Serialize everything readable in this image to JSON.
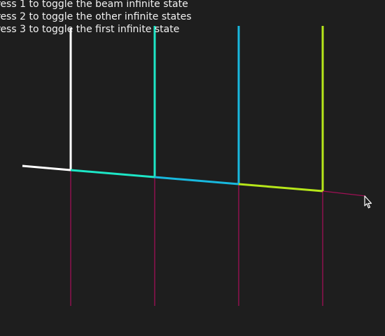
{
  "instructions": [
    "ress 1 to toggle the beam infinite state",
    "ress 2 to toggle the other infinite states",
    "ress 3 to toggle the first infinite state"
  ],
  "colors": {
    "background": "#1e1e1e",
    "text": "#f2f2f2",
    "beam_start": "#ffffff",
    "segment_1": "#1de6c6",
    "segment_2": "#18b8de",
    "segment_3": "#b6e61a",
    "extension": "#a01055"
  },
  "cursor_icon": "arrow-cursor-icon"
}
